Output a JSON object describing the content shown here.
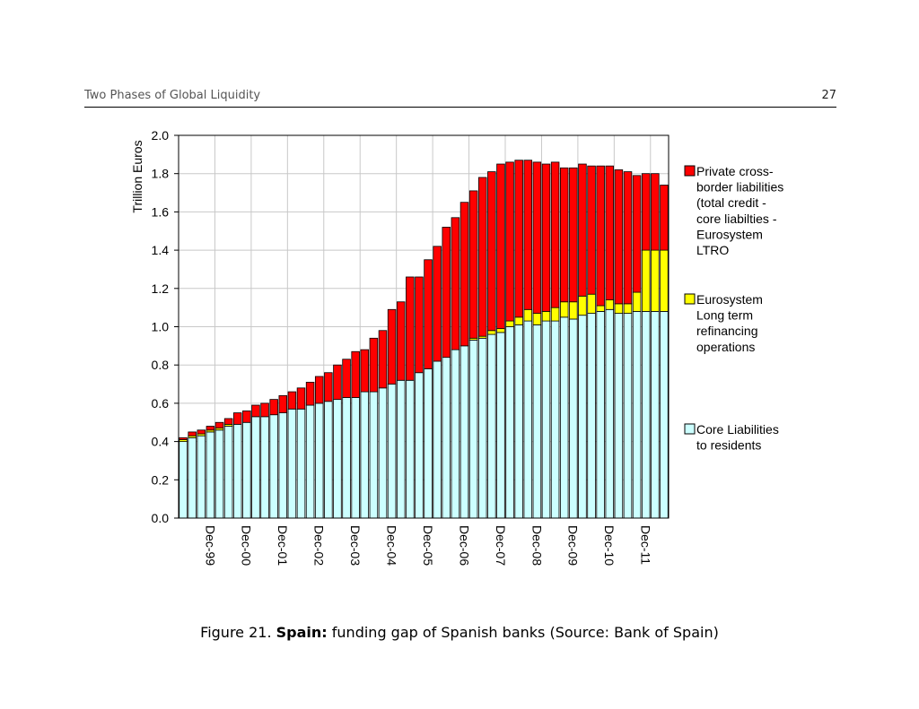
{
  "header": {
    "title": "Two Phases of Global Liquidity",
    "page_number": "27"
  },
  "caption": {
    "label": "Figure 21.",
    "subject": "Spain:",
    "text": "funding gap of Spanish banks (Source: Bank of Spain)"
  },
  "chart_data": {
    "type": "bar",
    "stacked": true,
    "title": "",
    "xlabel": "",
    "ylabel": "Trillion Euros",
    "ylim": [
      0,
      2.0
    ],
    "yticks": [
      "0.0",
      "0.2",
      "0.4",
      "0.6",
      "0.8",
      "1.0",
      "1.2",
      "1.4",
      "1.6",
      "1.8",
      "2.0"
    ],
    "grid": true,
    "legend_position": "right",
    "x_tick_labels": [
      {
        "index": 2,
        "label": "Dec-99"
      },
      {
        "index": 6,
        "label": "Dec-00"
      },
      {
        "index": 10,
        "label": "Dec-01"
      },
      {
        "index": 14,
        "label": "Dec-02"
      },
      {
        "index": 18,
        "label": "Dec-03"
      },
      {
        "index": 22,
        "label": "Dec-04"
      },
      {
        "index": 26,
        "label": "Dec-05"
      },
      {
        "index": 30,
        "label": "Dec-06"
      },
      {
        "index": 34,
        "label": "Dec-07"
      },
      {
        "index": 38,
        "label": "Dec-08"
      },
      {
        "index": 42,
        "label": "Dec-09"
      },
      {
        "index": 46,
        "label": "Dec-10"
      },
      {
        "index": 50,
        "label": "Dec-11"
      }
    ],
    "series": [
      {
        "name": "Core Liabilities to residents",
        "color": "#ccffff",
        "values": [
          0.4,
          0.42,
          0.43,
          0.45,
          0.46,
          0.48,
          0.49,
          0.5,
          0.53,
          0.53,
          0.54,
          0.55,
          0.57,
          0.57,
          0.59,
          0.6,
          0.61,
          0.62,
          0.63,
          0.63,
          0.66,
          0.66,
          0.68,
          0.7,
          0.72,
          0.72,
          0.76,
          0.78,
          0.82,
          0.84,
          0.88,
          0.9,
          0.93,
          0.94,
          0.96,
          0.97,
          1.0,
          1.01,
          1.03,
          1.01,
          1.03,
          1.03,
          1.05,
          1.04,
          1.06,
          1.07,
          1.08,
          1.09,
          1.07,
          1.07,
          1.08,
          1.08,
          1.08,
          1.08
        ]
      },
      {
        "name": "Eurosystem Long term refinancing operations",
        "color": "#ffff00",
        "values": [
          0.01,
          0.01,
          0.01,
          0.01,
          0.01,
          0.01,
          0,
          0,
          0,
          0,
          0,
          0,
          0,
          0,
          0,
          0,
          0,
          0,
          0,
          0,
          0,
          0,
          0,
          0,
          0,
          0,
          0,
          0,
          0,
          0,
          0,
          0,
          0.01,
          0.01,
          0.02,
          0.02,
          0.03,
          0.04,
          0.06,
          0.06,
          0.05,
          0.07,
          0.08,
          0.09,
          0.1,
          0.1,
          0.03,
          0.05,
          0.05,
          0.05,
          0.1,
          0.32,
          0.32,
          0.32
        ]
      },
      {
        "name": "Private cross-border liabilities (total credit - core liabilties - Eurosystem LTRO",
        "color": "#ff0000",
        "values": [
          0.01,
          0.02,
          0.02,
          0.02,
          0.03,
          0.03,
          0.06,
          0.06,
          0.06,
          0.07,
          0.08,
          0.09,
          0.09,
          0.11,
          0.12,
          0.14,
          0.15,
          0.18,
          0.2,
          0.24,
          0.22,
          0.28,
          0.3,
          0.39,
          0.41,
          0.54,
          0.5,
          0.57,
          0.6,
          0.68,
          0.69,
          0.75,
          0.77,
          0.83,
          0.83,
          0.86,
          0.83,
          0.82,
          0.78,
          0.79,
          0.77,
          0.76,
          0.7,
          0.7,
          0.69,
          0.67,
          0.73,
          0.7,
          0.7,
          0.69,
          0.61,
          0.4,
          0.4,
          0.34
        ]
      }
    ],
    "legend_entries": [
      {
        "series_index": 2,
        "lines": [
          "Private cross-",
          "border liabilities",
          "(total credit -",
          "core liabilties -",
          "Eurosystem",
          "LTRO"
        ]
      },
      {
        "series_index": 1,
        "lines": [
          "Eurosystem",
          "Long term",
          "refinancing",
          "operations"
        ]
      },
      {
        "series_index": 0,
        "lines": [
          "Core Liabilities",
          "to residents"
        ]
      }
    ]
  }
}
